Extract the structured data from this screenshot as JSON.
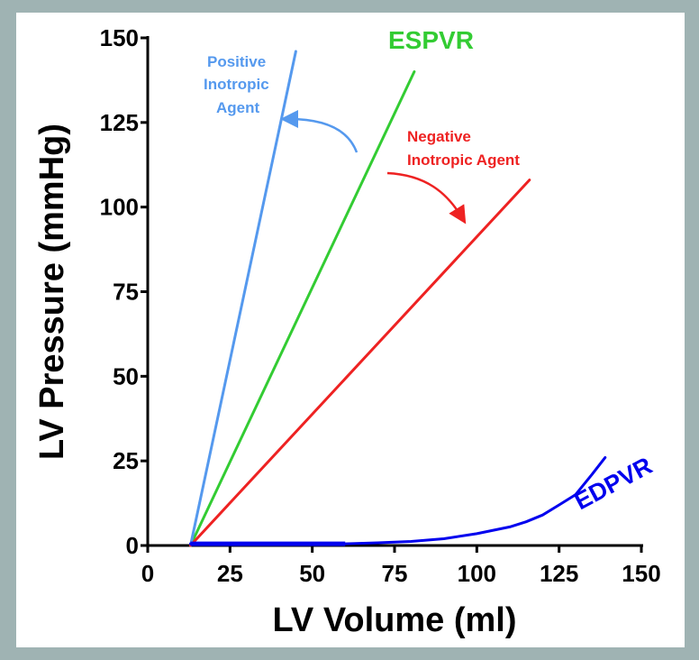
{
  "chart_data": {
    "type": "line",
    "xlabel": "LV Volume (ml)",
    "ylabel": "LV Pressure (mmHg)",
    "xlim": [
      0,
      150
    ],
    "ylim": [
      0,
      150
    ],
    "xticks": [
      "0",
      "25",
      "50",
      "75",
      "100",
      "125",
      "150"
    ],
    "yticks": [
      "0",
      "25",
      "50",
      "75",
      "100",
      "125",
      "150"
    ],
    "grid": false,
    "series": [
      {
        "name": "ESPVR",
        "color": "#33cc33",
        "x": [
          13,
          81
        ],
        "y": [
          0,
          140
        ]
      },
      {
        "name": "Positive Inotropic Agent",
        "color": "#5599ee",
        "x": [
          13,
          45
        ],
        "y": [
          0,
          146
        ]
      },
      {
        "name": "Negative Inotropic Agent",
        "color": "#ee2222",
        "x": [
          13,
          116
        ],
        "y": [
          0,
          108
        ]
      },
      {
        "name": "EDPVR",
        "color": "#0000ee",
        "x": [
          13,
          60,
          70,
          80,
          90,
          100,
          110,
          115,
          120,
          125,
          130,
          135,
          139
        ],
        "y": [
          0.5,
          0.5,
          0.8,
          1.2,
          2,
          3.5,
          5.5,
          7,
          9,
          12,
          15,
          21,
          26
        ]
      }
    ],
    "annotations": {
      "espvr": "ESPVR",
      "positive_lines": [
        "Positive",
        "Inotropic",
        "Agent"
      ],
      "negative_lines": [
        "Negative",
        "Inotropic Agent"
      ],
      "edpvr": "EDPVR"
    }
  }
}
